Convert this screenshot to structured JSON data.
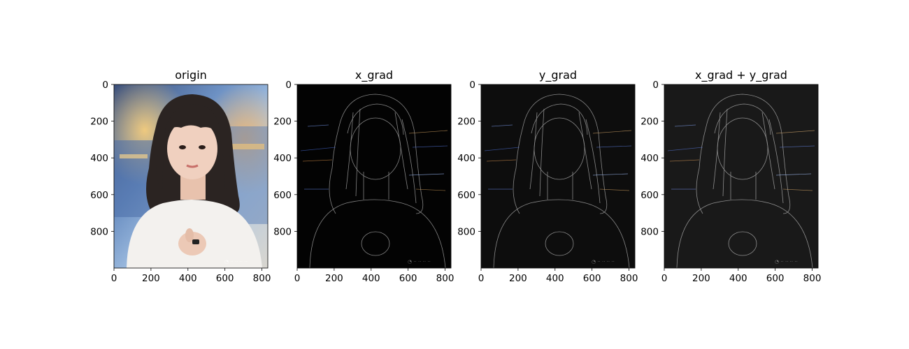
{
  "figure": {
    "background": "#ffffff"
  },
  "chart_data": [
    {
      "type": "image",
      "title": "origin",
      "content": "photo",
      "xlim": [
        0,
        832
      ],
      "ylim": [
        1000,
        0
      ],
      "xticks": [
        0,
        200,
        400,
        600,
        800
      ],
      "yticks": [
        0,
        200,
        400,
        600,
        800
      ],
      "xtick_labels": [
        "0",
        "200",
        "400",
        "600",
        "800"
      ],
      "ytick_labels": [
        "0",
        "200",
        "400",
        "600",
        "800"
      ]
    },
    {
      "type": "image",
      "title": "x_grad",
      "content": "edges-x",
      "xlim": [
        0,
        832
      ],
      "ylim": [
        1000,
        0
      ],
      "xticks": [
        0,
        200,
        400,
        600,
        800
      ],
      "yticks": [
        0,
        200,
        400,
        600,
        800
      ],
      "xtick_labels": [
        "0",
        "200",
        "400",
        "600",
        "800"
      ],
      "ytick_labels": [
        "0",
        "200",
        "400",
        "600",
        "800"
      ]
    },
    {
      "type": "image",
      "title": "y_grad",
      "content": "edges-y",
      "xlim": [
        0,
        832
      ],
      "ylim": [
        1000,
        0
      ],
      "xticks": [
        0,
        200,
        400,
        600,
        800
      ],
      "yticks": [
        0,
        200,
        400,
        600,
        800
      ],
      "xtick_labels": [
        "0",
        "200",
        "400",
        "600",
        "800"
      ],
      "ytick_labels": [
        "0",
        "200",
        "400",
        "600",
        "800"
      ]
    },
    {
      "type": "image",
      "title": "x_grad + y_grad",
      "content": "edges-xy",
      "xlim": [
        0,
        832
      ],
      "ylim": [
        1000,
        0
      ],
      "xticks": [
        0,
        200,
        400,
        600,
        800
      ],
      "yticks": [
        0,
        200,
        400,
        600,
        800
      ],
      "xtick_labels": [
        "0",
        "200",
        "400",
        "600",
        "800"
      ],
      "ytick_labels": [
        "0",
        "200",
        "400",
        "600",
        "800"
      ]
    }
  ]
}
